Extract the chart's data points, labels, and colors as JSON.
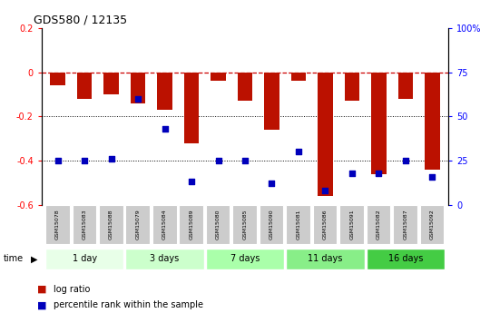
{
  "title": "GDS580 / 12135",
  "samples": [
    "GSM15078",
    "GSM15083",
    "GSM15088",
    "GSM15079",
    "GSM15084",
    "GSM15089",
    "GSM15080",
    "GSM15085",
    "GSM15090",
    "GSM15081",
    "GSM15086",
    "GSM15091",
    "GSM15082",
    "GSM15087",
    "GSM15092"
  ],
  "log_ratio": [
    -0.06,
    -0.12,
    -0.1,
    -0.14,
    -0.17,
    -0.32,
    -0.04,
    -0.13,
    -0.26,
    -0.04,
    -0.56,
    -0.13,
    -0.46,
    -0.12,
    -0.44
  ],
  "percentile_rank": [
    25,
    25,
    26,
    60,
    43,
    13,
    25,
    25,
    12,
    30,
    8,
    18,
    18,
    25,
    16
  ],
  "groups": [
    {
      "label": "1 day",
      "indices": [
        0,
        1,
        2
      ],
      "color": "#e8ffe8"
    },
    {
      "label": "3 days",
      "indices": [
        3,
        4,
        5
      ],
      "color": "#ccffcc"
    },
    {
      "label": "7 days",
      "indices": [
        6,
        7,
        8
      ],
      "color": "#aaffaa"
    },
    {
      "label": "11 days",
      "indices": [
        9,
        10,
        11
      ],
      "color": "#88ee88"
    },
    {
      "label": "16 days",
      "indices": [
        12,
        13,
        14
      ],
      "color": "#44cc44"
    }
  ],
  "bar_color": "#bb1100",
  "dot_color": "#0000bb",
  "ylim_left": [
    -0.6,
    0.2
  ],
  "ylim_right": [
    0,
    100
  ],
  "hline_color": "#cc0000",
  "legend_red": "log ratio",
  "legend_blue": "percentile rank within the sample",
  "bg_color": "#ffffff",
  "plot_bg": "#ffffff",
  "label_bg": "#cccccc"
}
